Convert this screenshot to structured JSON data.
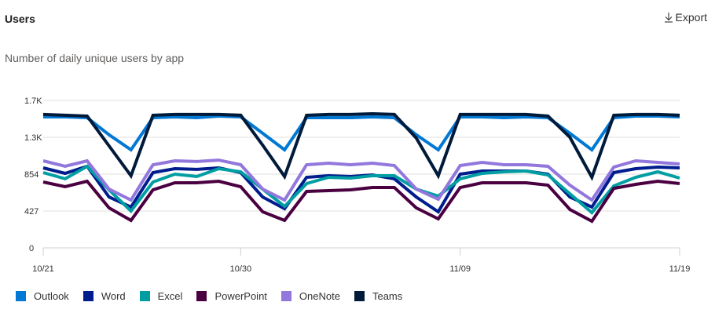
{
  "header": {
    "title": "Users",
    "export_label": "Export",
    "export_icon": "download-arrow-icon"
  },
  "subtitle": "Number of daily unique users by app",
  "legend": [
    {
      "label": "Outlook",
      "color": "#0078d4"
    },
    {
      "label": "Word",
      "color": "#001d8e"
    },
    {
      "label": "Excel",
      "color": "#009ea3"
    },
    {
      "label": "PowerPoint",
      "color": "#4a0040"
    },
    {
      "label": "OneNote",
      "color": "#9277dc"
    },
    {
      "label": "Teams",
      "color": "#001a3a"
    }
  ],
  "chart_data": {
    "type": "line",
    "title": "Number of daily unique users by app",
    "xlabel": "",
    "ylabel": "",
    "ylim": [
      0,
      1708
    ],
    "y_ticks": [
      0,
      427,
      854,
      1281,
      1708
    ],
    "y_tick_labels": [
      "0",
      "427",
      "854",
      "1.3K",
      "1.7K"
    ],
    "x_tick_labels": [
      {
        "label": "10/21",
        "index": 0
      },
      {
        "label": "10/30",
        "index": 9
      },
      {
        "label": "11/09",
        "index": 19
      },
      {
        "label": "11/19",
        "index": 29
      }
    ],
    "grid": true,
    "legend_position": "bottom",
    "x": [
      "10/21",
      "10/22",
      "10/23",
      "10/24",
      "10/25",
      "10/26",
      "10/27",
      "10/28",
      "10/29",
      "10/30",
      "10/31",
      "11/01",
      "11/02",
      "11/03",
      "11/04",
      "11/05",
      "11/06",
      "11/07",
      "11/08",
      "11/09",
      "11/10",
      "11/11",
      "11/12",
      "11/13",
      "11/14",
      "11/15",
      "11/16",
      "11/17",
      "11/18",
      "11/19"
    ],
    "series": [
      {
        "name": "Outlook",
        "color": "#0078d4",
        "values": [
          1517,
          1517,
          1508,
          1310,
          1136,
          1508,
          1517,
          1508,
          1526,
          1517,
          1327,
          1136,
          1508,
          1508,
          1508,
          1517,
          1508,
          1310,
          1136,
          1517,
          1517,
          1508,
          1517,
          1508,
          1327,
          1136,
          1508,
          1526,
          1526,
          1517
        ]
      },
      {
        "name": "Word",
        "color": "#001d8e",
        "values": [
          927,
          863,
          945,
          590,
          472,
          872,
          918,
          909,
          927,
          872,
          590,
          454,
          818,
          836,
          827,
          845,
          800,
          590,
          418,
          854,
          890,
          890,
          890,
          854,
          590,
          472,
          872,
          918,
          936,
          927
        ]
      },
      {
        "name": "Excel",
        "color": "#009ea3",
        "values": [
          872,
          800,
          945,
          672,
          427,
          763,
          854,
          827,
          918,
          881,
          681,
          481,
          745,
          818,
          809,
          836,
          836,
          681,
          600,
          800,
          863,
          881,
          890,
          845,
          627,
          409,
          718,
          818,
          881,
          809
        ]
      },
      {
        "name": "PowerPoint",
        "color": "#4a0040",
        "values": [
          763,
          709,
          772,
          463,
          318,
          672,
          754,
          754,
          772,
          709,
          418,
          318,
          654,
          663,
          672,
          700,
          700,
          463,
          336,
          700,
          754,
          754,
          754,
          727,
          445,
          309,
          690,
          736,
          772,
          745
        ]
      },
      {
        "name": "OneNote",
        "color": "#9277dc",
        "values": [
          1008,
          945,
          1008,
          681,
          554,
          963,
          1008,
          1000,
          1017,
          963,
          681,
          554,
          963,
          981,
          963,
          981,
          954,
          681,
          563,
          954,
          990,
          963,
          963,
          945,
          727,
          554,
          936,
          1008,
          990,
          972
        ]
      },
      {
        "name": "Teams",
        "color": "#001a3a",
        "values": [
          1545,
          1536,
          1526,
          1181,
          836,
          1536,
          1545,
          1545,
          1545,
          1536,
          1190,
          827,
          1536,
          1545,
          1545,
          1554,
          1545,
          1272,
          836,
          1545,
          1545,
          1545,
          1545,
          1526,
          1281,
          818,
          1536,
          1545,
          1545,
          1536
        ]
      }
    ]
  }
}
